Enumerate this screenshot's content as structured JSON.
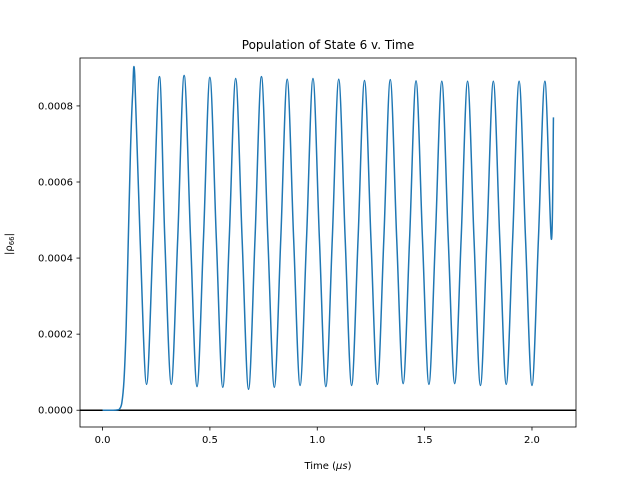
{
  "chart_data": {
    "type": "line",
    "title": "Population of State 6 v. Time",
    "xlabel": "Time (",
    "xlabel_unit": "μs",
    "xlabel_close": ")",
    "ylabel": "|ρ",
    "ylabel_sub": "66",
    "ylabel_close": "|",
    "xlim": [
      -0.105,
      2.205
    ],
    "ylim": [
      -4.41e-05,
      0.000926
    ],
    "xticks": [
      0.0,
      0.5,
      1.0,
      1.5,
      2.0
    ],
    "xtick_labels": [
      "0.0",
      "0.5",
      "1.0",
      "1.5",
      "2.0"
    ],
    "yticks": [
      0.0,
      0.0002,
      0.0004,
      0.0006,
      0.0008
    ],
    "ytick_labels": [
      "0.0000",
      "0.0002",
      "0.0004",
      "0.0006",
      "0.0008"
    ],
    "grid": false,
    "hline_y": 0.0,
    "series": [
      {
        "color": "#1f77b4",
        "x": [
          0,
          0.05,
          0.07,
          0.08,
          0.09,
          0.1,
          0.11,
          0.12,
          0.13,
          0.14,
          0.15,
          0.175,
          0.205,
          0.235,
          0.265,
          0.29,
          0.32,
          0.35,
          0.38,
          0.41,
          0.44,
          0.47,
          0.5,
          0.53,
          0.56,
          0.59,
          0.62,
          0.65,
          0.68,
          0.71,
          0.74,
          0.77,
          0.8,
          0.83,
          0.86,
          0.89,
          0.92,
          0.95,
          0.98,
          1.01,
          1.04,
          1.07,
          1.1,
          1.13,
          1.16,
          1.19,
          1.22,
          1.25,
          1.28,
          1.31,
          1.34,
          1.37,
          1.4,
          1.43,
          1.46,
          1.49,
          1.52,
          1.55,
          1.58,
          1.61,
          1.64,
          1.67,
          1.7,
          1.73,
          1.76,
          1.79,
          1.82,
          1.85,
          1.88,
          1.91,
          1.94,
          1.97,
          2.0,
          2.03,
          2.06,
          2.09,
          2.1
        ],
        "y": [
          0,
          0,
          1e-06,
          4e-06,
          2e-05,
          8e-05,
          0.00022,
          0.00045,
          0.00068,
          0.00083,
          0.00088,
          0.00045,
          6.8e-05,
          0.00045,
          0.000877,
          0.00045,
          6.8e-05,
          0.00045,
          0.00088,
          0.00045,
          6.2e-05,
          0.00045,
          0.000875,
          0.00045,
          6e-05,
          0.00045,
          0.000872,
          0.00045,
          5.5e-05,
          0.00045,
          0.000877,
          0.00045,
          6e-05,
          0.00045,
          0.00087,
          0.00045,
          6.5e-05,
          0.00045,
          0.000872,
          0.00045,
          6.2e-05,
          0.00045,
          0.00087,
          0.00045,
          6.5e-05,
          0.00045,
          0.000867,
          0.00045,
          6.8e-05,
          0.00045,
          0.000869,
          0.00045,
          7e-05,
          0.00045,
          0.000866,
          0.00045,
          6.8e-05,
          0.00045,
          0.000865,
          0.00045,
          7e-05,
          0.00045,
          0.000865,
          0.00045,
          6.5e-05,
          0.00045,
          0.000865,
          0.00045,
          6.8e-05,
          0.00045,
          0.000865,
          0.00045,
          6.5e-05,
          0.00045,
          0.000865,
          0.00045,
          0.00077
        ]
      }
    ]
  }
}
